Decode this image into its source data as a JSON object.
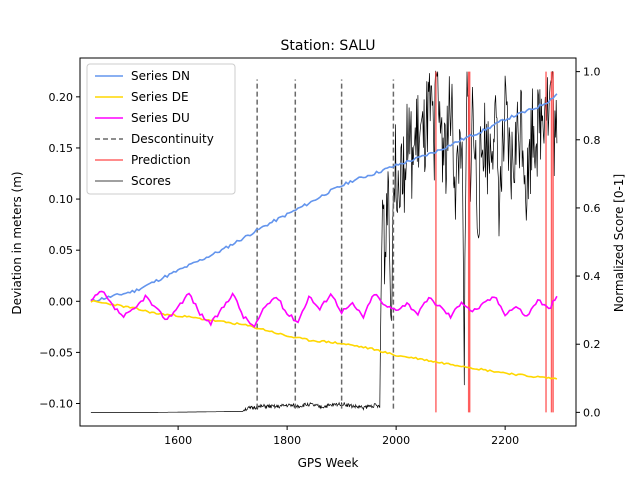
{
  "chart_data": {
    "type": "line",
    "title": "Station: SALU",
    "xlabel": "GPS Week",
    "ylabel": "Deviation in meters (m)",
    "y2label": "Normalized Score [0-1]",
    "xlim": [
      1420,
      2330
    ],
    "ylim": [
      -0.122,
      0.238
    ],
    "y2lim": [
      -0.04,
      1.04
    ],
    "xticks": [
      1600,
      1800,
      2000,
      2200
    ],
    "yticks": [
      -0.1,
      -0.05,
      0.0,
      0.05,
      0.1,
      0.15,
      0.2
    ],
    "ytick_labels": [
      "−0.10",
      "−0.05",
      "0.00",
      "0.05",
      "0.10",
      "0.15",
      "0.20"
    ],
    "y2ticks": [
      0.0,
      0.2,
      0.4,
      0.6,
      0.8,
      1.0
    ],
    "y2tick_labels": [
      "0.0",
      "0.2",
      "0.4",
      "0.6",
      "0.8",
      "1.0"
    ],
    "legend_position": "top-left",
    "legend": [
      {
        "label": "Series DN",
        "color": "#6495ED",
        "style": "solid"
      },
      {
        "label": "Series DE",
        "color": "#FFD700",
        "style": "solid"
      },
      {
        "label": "Series DU",
        "color": "#FF00FF",
        "style": "solid"
      },
      {
        "label": "Descontinuity",
        "color": "#696969",
        "style": "dashed"
      },
      {
        "label": "Prediction",
        "color": "#FF6666",
        "style": "solid"
      },
      {
        "label": "Scores",
        "color": "#000000",
        "style": "thin"
      }
    ],
    "series": [
      {
        "name": "Series DN",
        "axis": "left",
        "color": "#6495ED",
        "x": [
          1440,
          1480,
          1520,
          1560,
          1600,
          1640,
          1680,
          1720,
          1760,
          1800,
          1840,
          1880,
          1920,
          1960,
          2000,
          2040,
          2080,
          2120,
          2160,
          2200,
          2240,
          2260,
          2280,
          2295
        ],
        "y": [
          0.0,
          0.005,
          0.01,
          0.02,
          0.03,
          0.04,
          0.05,
          0.062,
          0.074,
          0.085,
          0.096,
          0.108,
          0.118,
          0.125,
          0.133,
          0.14,
          0.148,
          0.158,
          0.167,
          0.178,
          0.186,
          0.19,
          0.196,
          0.203
        ]
      },
      {
        "name": "Series DE",
        "axis": "left",
        "color": "#FFD700",
        "x": [
          1440,
          1480,
          1520,
          1560,
          1600,
          1640,
          1680,
          1720,
          1760,
          1800,
          1840,
          1880,
          1920,
          1960,
          2000,
          2040,
          2080,
          2120,
          2160,
          2200,
          2240,
          2260,
          2280,
          2295
        ],
        "y": [
          0.0,
          -0.003,
          -0.007,
          -0.012,
          -0.014,
          -0.017,
          -0.02,
          -0.023,
          -0.028,
          -0.034,
          -0.038,
          -0.04,
          -0.043,
          -0.047,
          -0.053,
          -0.056,
          -0.06,
          -0.063,
          -0.067,
          -0.07,
          -0.073,
          -0.074,
          -0.075,
          -0.076
        ]
      },
      {
        "name": "Series DU",
        "axis": "left",
        "color": "#FF00FF",
        "x": [
          1440,
          1460,
          1480,
          1500,
          1520,
          1540,
          1560,
          1580,
          1600,
          1620,
          1640,
          1660,
          1680,
          1700,
          1720,
          1740,
          1760,
          1780,
          1800,
          1820,
          1840,
          1860,
          1880,
          1900,
          1920,
          1940,
          1960,
          1980,
          2000,
          2020,
          2040,
          2060,
          2080,
          2100,
          2120,
          2140,
          2160,
          2180,
          2200,
          2220,
          2240,
          2260,
          2280,
          2295
        ],
        "y": [
          0.0,
          0.01,
          -0.005,
          -0.015,
          -0.008,
          0.005,
          -0.008,
          -0.018,
          -0.005,
          0.008,
          -0.012,
          -0.022,
          -0.008,
          0.008,
          -0.015,
          -0.025,
          -0.005,
          0.005,
          -0.012,
          -0.02,
          0.005,
          -0.008,
          0.008,
          -0.01,
          -0.003,
          -0.015,
          0.008,
          -0.005,
          -0.008,
          -0.002,
          -0.012,
          0.003,
          -0.005,
          -0.015,
          0.0,
          -0.01,
          -0.003,
          0.005,
          -0.012,
          -0.005,
          -0.015,
          0.002,
          -0.008,
          0.005
        ]
      },
      {
        "name": "Scores",
        "axis": "right",
        "color": "#000000",
        "x": [
          1440,
          1500,
          1560,
          1620,
          1680,
          1720,
          1740,
          1760,
          1780,
          1800,
          1820,
          1840,
          1860,
          1880,
          1900,
          1920,
          1940,
          1960,
          1970,
          1972,
          1975,
          1980,
          1985,
          1990,
          1995,
          2000,
          2005,
          2010,
          2015,
          2020,
          2030,
          2040,
          2050,
          2060,
          2070,
          2075,
          2080,
          2090,
          2100,
          2110,
          2120,
          2125,
          2130,
          2135,
          2140,
          2150,
          2160,
          2170,
          2180,
          2190,
          2200,
          2210,
          2220,
          2230,
          2240,
          2250,
          2260,
          2270,
          2275,
          2280,
          2285,
          2290,
          2295
        ],
        "y": [
          0.0,
          0.0,
          0.0,
          0.001,
          0.002,
          0.003,
          0.008,
          0.012,
          0.01,
          0.015,
          0.012,
          0.018,
          0.01,
          0.014,
          0.02,
          0.012,
          0.008,
          0.015,
          0.01,
          0.3,
          0.62,
          0.45,
          0.75,
          0.3,
          0.65,
          0.73,
          0.69,
          0.78,
          0.72,
          0.8,
          0.74,
          0.82,
          0.78,
          0.87,
          0.82,
          0.96,
          0.88,
          0.75,
          0.9,
          0.65,
          0.85,
          0.1,
          0.98,
          0.7,
          0.88,
          0.6,
          0.82,
          0.75,
          0.88,
          0.62,
          0.85,
          0.7,
          0.78,
          0.88,
          0.65,
          0.85,
          0.82,
          0.9,
          0.96,
          0.86,
          0.99,
          0.82,
          0.79
        ]
      }
    ],
    "discontinuities": [
      1745,
      1815,
      1900,
      1995
    ],
    "discontinuity_ylim": [
      -0.105,
      0.217
    ],
    "predictions": [
      2073,
      2133,
      2135,
      2275,
      2285,
      2288
    ]
  }
}
